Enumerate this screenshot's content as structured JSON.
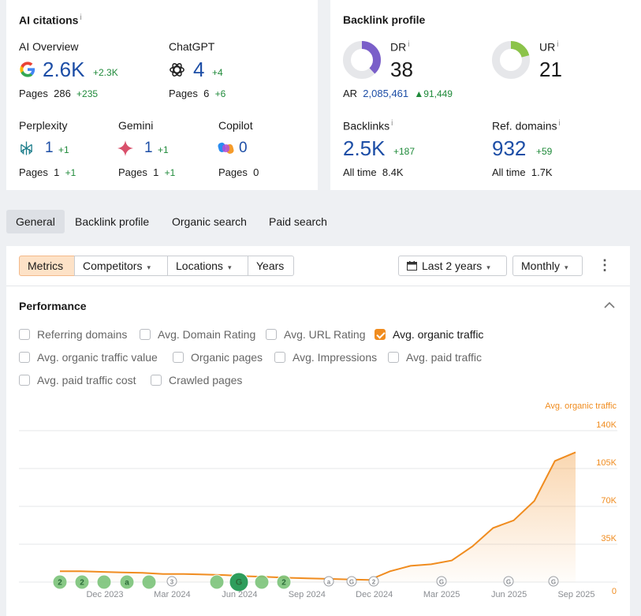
{
  "ai_citations": {
    "title": "AI citations",
    "info": "i",
    "platforms": [
      {
        "name": "AI Overview",
        "value": "2.6K",
        "delta": "+2.3K",
        "pages_label": "Pages",
        "pages": "286",
        "pages_delta": "+235",
        "icon": "google-icon"
      },
      {
        "name": "ChatGPT",
        "value": "4",
        "delta": "+4",
        "pages_label": "Pages",
        "pages": "6",
        "pages_delta": "+6",
        "icon": "chatgpt-icon"
      },
      {
        "name": "Perplexity",
        "value": "1",
        "delta": "+1",
        "pages_label": "Pages",
        "pages": "1",
        "pages_delta": "+1",
        "icon": "perplexity-icon"
      },
      {
        "name": "Gemini",
        "value": "1",
        "delta": "+1",
        "pages_label": "Pages",
        "pages": "1",
        "pages_delta": "+1",
        "icon": "gemini-icon"
      },
      {
        "name": "Copilot",
        "value": "0",
        "delta": "",
        "pages_label": "Pages",
        "pages": "0",
        "pages_delta": "",
        "icon": "copilot-icon"
      }
    ]
  },
  "backlink_profile": {
    "title": "Backlink profile",
    "dr": {
      "label": "DR",
      "info": "i",
      "value": "38",
      "fill": 0.38
    },
    "ur": {
      "label": "UR",
      "info": "i",
      "value": "21",
      "fill": 0.21
    },
    "ar": {
      "label": "AR",
      "value": "2,085,461",
      "delta": "91,449"
    },
    "backlinks": {
      "label": "Backlinks",
      "info": "i",
      "value": "2.5K",
      "delta": "+187",
      "all_time_label": "All time",
      "all_time": "8.4K"
    },
    "ref_domains": {
      "label": "Ref. domains",
      "info": "i",
      "value": "932",
      "delta": "+59",
      "all_time_label": "All time",
      "all_time": "1.7K"
    }
  },
  "tabs": [
    "General",
    "Backlink profile",
    "Organic search",
    "Paid search"
  ],
  "toolbar": {
    "segments": [
      "Metrics",
      "Competitors",
      "Locations",
      "Years"
    ],
    "date_range": "Last 2 years",
    "granularity": "Monthly"
  },
  "performance": {
    "title": "Performance",
    "checkboxes": [
      {
        "label": "Referring domains",
        "checked": false
      },
      {
        "label": "Avg. Domain Rating",
        "checked": false
      },
      {
        "label": "Avg. URL Rating",
        "checked": false
      },
      {
        "label": "Avg. organic traffic",
        "checked": true
      },
      {
        "label": "Avg. organic traffic value",
        "checked": false
      },
      {
        "label": "Organic pages",
        "checked": false
      },
      {
        "label": "Avg. Impressions",
        "checked": false
      },
      {
        "label": "Avg. paid traffic",
        "checked": false
      },
      {
        "label": "Avg. paid traffic cost",
        "checked": false
      },
      {
        "label": "Crawled pages",
        "checked": false
      }
    ]
  },
  "chart_data": {
    "type": "area",
    "series": [
      {
        "name": "Avg. organic traffic",
        "color": "#f08c1f"
      }
    ],
    "x_ticks": [
      "Dec 2023",
      "Mar 2024",
      "Jun 2024",
      "Sep 2024",
      "Dec 2024",
      "Mar 2025",
      "Jun 2025",
      "Sep 2025"
    ],
    "y_ticks": [
      "0",
      "35K",
      "70K",
      "105K",
      "140K"
    ],
    "ylim": [
      0,
      140000
    ],
    "values": [
      10000,
      10000,
      9500,
      9000,
      8500,
      7500,
      7500,
      7000,
      6500,
      5500,
      4800,
      4000,
      3500,
      3000,
      2500,
      2000,
      10000,
      15000,
      16500,
      20000,
      33000,
      50000,
      57000,
      75000,
      112000,
      120000
    ],
    "markers": [
      {
        "label": "2",
        "type": "green"
      },
      {
        "label": "2",
        "type": "green"
      },
      {
        "label": "",
        "type": "green"
      },
      {
        "label": "a",
        "type": "green"
      },
      {
        "label": "",
        "type": "green"
      },
      {
        "label": "3",
        "type": "outline"
      },
      {
        "label": "",
        "type": "green"
      },
      {
        "label": "G",
        "type": "green-big"
      },
      {
        "label": "",
        "type": "green"
      },
      {
        "label": "2",
        "type": "green"
      },
      {
        "label": "a",
        "type": "outline"
      },
      {
        "label": "G",
        "type": "outline"
      },
      {
        "label": "2",
        "type": "outline"
      },
      {
        "label": "G",
        "type": "outline"
      },
      {
        "label": "G",
        "type": "outline"
      },
      {
        "label": "G",
        "type": "outline"
      }
    ],
    "grid": true,
    "legend": "top-right"
  }
}
